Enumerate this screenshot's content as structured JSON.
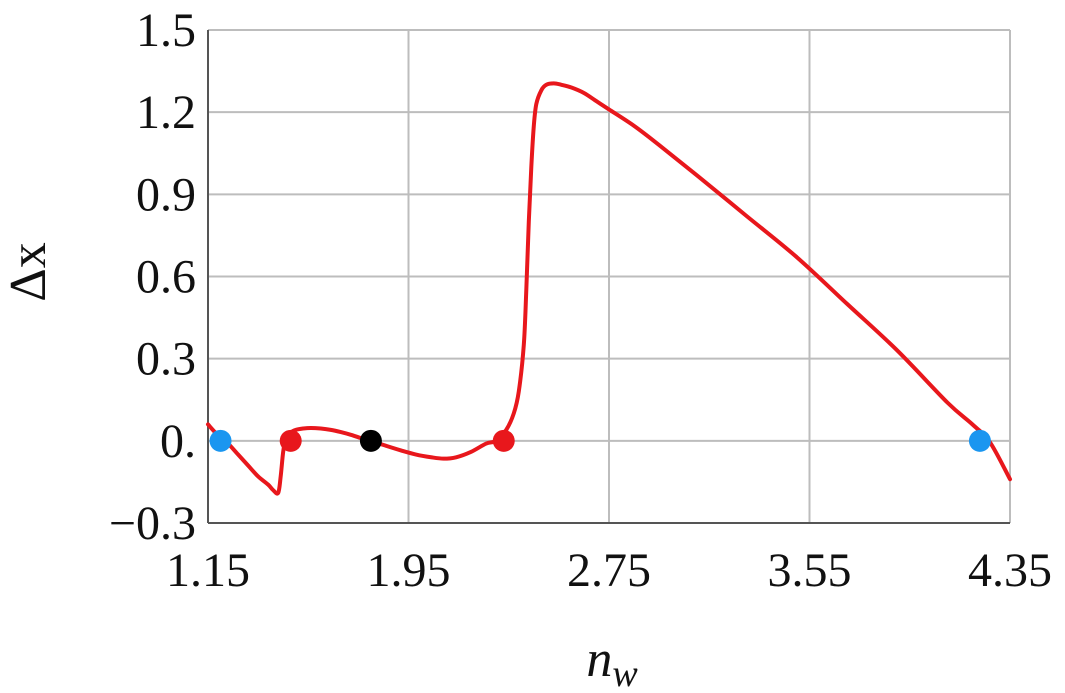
{
  "chart_data": {
    "type": "line",
    "title": "",
    "xlabel": "n",
    "xlabel_subscript": "w",
    "ylabel": "Δx",
    "xlim": [
      1.15,
      4.35
    ],
    "ylim": [
      -0.3,
      1.5
    ],
    "x_ticks": [
      1.15,
      1.95,
      2.75,
      3.55,
      4.35
    ],
    "x_tick_labels": [
      "1.15",
      "1.95",
      "2.75",
      "3.55",
      "4.35"
    ],
    "y_ticks": [
      -0.3,
      0.0,
      0.3,
      0.6,
      0.9,
      1.2,
      1.5
    ],
    "y_tick_labels": [
      "−0.3",
      "0.",
      "0.3",
      "0.6",
      "0.9",
      "1.2",
      "1.5"
    ],
    "grid": true,
    "legend": "none",
    "series": [
      {
        "color": "#e8171c",
        "x": [
          1.15,
          1.19,
          1.23,
          1.27,
          1.31,
          1.35,
          1.39,
          1.41,
          1.43,
          1.44,
          1.45,
          1.46,
          1.48,
          1.5,
          1.53,
          1.56,
          1.6,
          1.64,
          1.68,
          1.72,
          1.76,
          1.8,
          1.86,
          1.92,
          1.98,
          2.04,
          2.09,
          2.14,
          2.2,
          2.26,
          2.3,
          2.34,
          2.37,
          2.39,
          2.41,
          2.42,
          2.43,
          2.44,
          2.45,
          2.46,
          2.48,
          2.5,
          2.53,
          2.56,
          2.6,
          2.65,
          2.7,
          2.75,
          2.85,
          2.95,
          3.1,
          3.3,
          3.5,
          3.7,
          3.9,
          4.1,
          4.2,
          4.27,
          4.35
        ],
        "y": [
          0.06,
          0.02,
          -0.01,
          -0.05,
          -0.09,
          -0.13,
          -0.16,
          -0.18,
          -0.19,
          -0.13,
          -0.04,
          0.005,
          0.03,
          0.04,
          0.045,
          0.047,
          0.045,
          0.04,
          0.032,
          0.022,
          0.01,
          0.0,
          -0.018,
          -0.035,
          -0.05,
          -0.06,
          -0.065,
          -0.06,
          -0.04,
          -0.01,
          0.0,
          0.04,
          0.1,
          0.18,
          0.35,
          0.55,
          0.8,
          1.0,
          1.15,
          1.23,
          1.28,
          1.3,
          1.305,
          1.3,
          1.29,
          1.27,
          1.24,
          1.21,
          1.15,
          1.08,
          0.97,
          0.82,
          0.67,
          0.5,
          0.33,
          0.14,
          0.06,
          -0.005,
          -0.14
        ]
      }
    ],
    "points": [
      {
        "x": 1.2,
        "y": 0.0,
        "color": "#1a96f0"
      },
      {
        "x": 1.48,
        "y": 0.0,
        "color": "#e8171c"
      },
      {
        "x": 1.8,
        "y": 0.0,
        "color": "#000000"
      },
      {
        "x": 2.33,
        "y": 0.0,
        "color": "#e8171c"
      },
      {
        "x": 4.23,
        "y": 0.0,
        "color": "#1a96f0"
      }
    ]
  }
}
